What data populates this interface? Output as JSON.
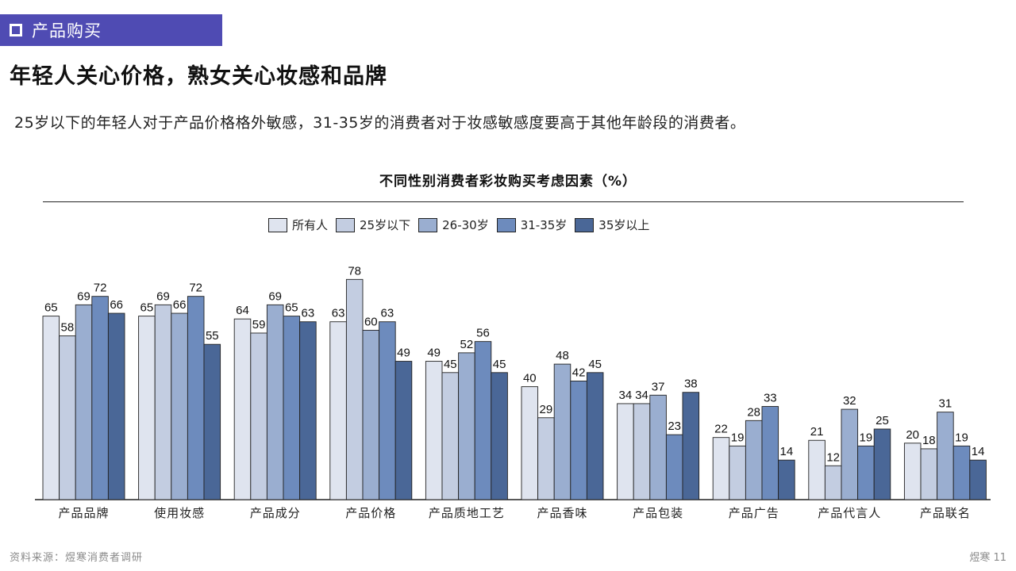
{
  "section": {
    "label": "产品购买"
  },
  "headline": "年轻人关心价格，熟女关心妆感和品牌",
  "subtext": "25岁以下的年轻人对于产品价格格外敏感，31-35岁的消费者对于妆感敏感度要高于其他年龄段的消费者。",
  "footer": {
    "source": "资料来源：煜寒消费者调研",
    "page": "煜寒 11"
  },
  "chart_data": {
    "type": "bar",
    "title": "不同性别消费者彩妆购买考虑因素（%）",
    "categories": [
      "产品品牌",
      "使用妆感",
      "产品成分",
      "产品价格",
      "产品质地工艺",
      "产品香味",
      "产品包装",
      "产品广告",
      "产品代言人",
      "产品联名"
    ],
    "series": [
      {
        "name": "所有人",
        "color": "#dfe4ef",
        "values": [
          65,
          65,
          64,
          63,
          49,
          40,
          34,
          22,
          21,
          20
        ]
      },
      {
        "name": "25岁以下",
        "color": "#c3cde1",
        "values": [
          58,
          69,
          59,
          78,
          45,
          29,
          34,
          19,
          12,
          18
        ]
      },
      {
        "name": "26-30岁",
        "color": "#9aaed0",
        "values": [
          69,
          66,
          69,
          60,
          52,
          48,
          37,
          28,
          32,
          31
        ]
      },
      {
        "name": "31-35岁",
        "color": "#6d8bbd",
        "values": [
          72,
          72,
          65,
          63,
          56,
          42,
          23,
          33,
          19,
          19
        ]
      },
      {
        "name": "35岁以上",
        "color": "#4a6797",
        "values": [
          66,
          55,
          63,
          49,
          45,
          45,
          38,
          14,
          25,
          14
        ]
      }
    ],
    "ylim": [
      0,
      80
    ],
    "legend_position": "top-center",
    "grid": false
  }
}
